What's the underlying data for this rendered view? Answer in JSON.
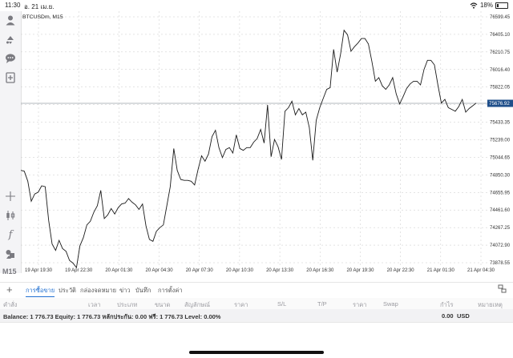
{
  "status": {
    "time": "11:30",
    "date": "อ. 21 เม.ย.",
    "battery": "18%",
    "wifi_icon": "wifi-icon"
  },
  "symbol": "BTCUSDm, M15",
  "toolbar": {
    "icons": [
      "user-icon",
      "trade-icon",
      "chat-icon",
      "new-order-icon",
      "crosshair-icon",
      "candle-type-icon",
      "function-icon",
      "objects-icon"
    ],
    "timeframe": "M15"
  },
  "chart_data": {
    "type": "line",
    "y_ticks": [
      "76599.45",
      "76405.10",
      "76210.75",
      "76016.40",
      "75822.05",
      "75627.70",
      "75433.35",
      "75239.00",
      "75044.65",
      "74850.30",
      "74655.95",
      "74461.60",
      "74267.25",
      "74072.90",
      "73878.55"
    ],
    "x_ticks": [
      "19 Apr 19:30",
      "19 Apr 22:30",
      "20 Apr 01:30",
      "20 Apr 04:30",
      "20 Apr 07:30",
      "20 Apr 10:30",
      "20 Apr 13:30",
      "20 Apr 16:30",
      "20 Apr 19:30",
      "20 Apr 22:30",
      "21 Apr 01:30",
      "21 Apr 04:30"
    ],
    "current_price": "75676.92",
    "ylim": [
      73810,
      76690
    ],
    "y": [
      74940,
      74930,
      74820,
      74600,
      74680,
      74700,
      74770,
      74760,
      74390,
      74130,
      74060,
      74170,
      74080,
      74050,
      73950,
      73920,
      73870,
      74110,
      74200,
      74340,
      74380,
      74480,
      74550,
      74720,
      74410,
      74450,
      74520,
      74460,
      74530,
      74570,
      74580,
      74630,
      74590,
      74560,
      74510,
      74570,
      74330,
      74180,
      74160,
      74270,
      74310,
      74340,
      74550,
      74760,
      75180,
      74940,
      74840,
      74830,
      74830,
      74820,
      74780,
      74950,
      75100,
      75040,
      75120,
      75310,
      75380,
      75190,
      75080,
      75170,
      75190,
      75130,
      75330,
      75180,
      75160,
      75190,
      75190,
      75250,
      75290,
      75390,
      75240,
      75660,
      75090,
      75280,
      75200,
      75060,
      75590,
      75630,
      75700,
      75550,
      75620,
      75550,
      75580,
      75410,
      75050,
      75490,
      75630,
      75730,
      75830,
      75850,
      76270,
      76020,
      76220,
      76480,
      76430,
      76250,
      76300,
      76340,
      76390,
      76390,
      76330,
      76140,
      75920,
      75960,
      75870,
      75830,
      75880,
      75960,
      75780,
      75670,
      75750,
      75840,
      75890,
      75920,
      75920,
      75880,
      76050,
      76150,
      76150,
      76100,
      75880,
      75680,
      75720,
      75630,
      75610,
      75590,
      75640,
      75720,
      75580,
      75620,
      75650,
      75680
    ]
  },
  "tabs": [
    "การซื้อขาย",
    "ประวัติ",
    "กล่องจดหมาย",
    "ข่าว",
    "บันทึก",
    "การตั้งค่า"
  ],
  "columns": [
    "คำสั่ง",
    "เวลา",
    "ประเภท",
    "ขนาด",
    "สัญลักษณ์",
    "ราคา",
    "S/L",
    "T/P",
    "ราคา",
    "Swap",
    "กำไร",
    "หมายเหตุ"
  ],
  "balance": {
    "text": "Balance: 1 776.73 Equity: 1 776.73 หลักประกัน: 0.00 ฟรี: 1 776.73 Level: 0.00%",
    "profit": "0.00",
    "currency": "USD"
  }
}
